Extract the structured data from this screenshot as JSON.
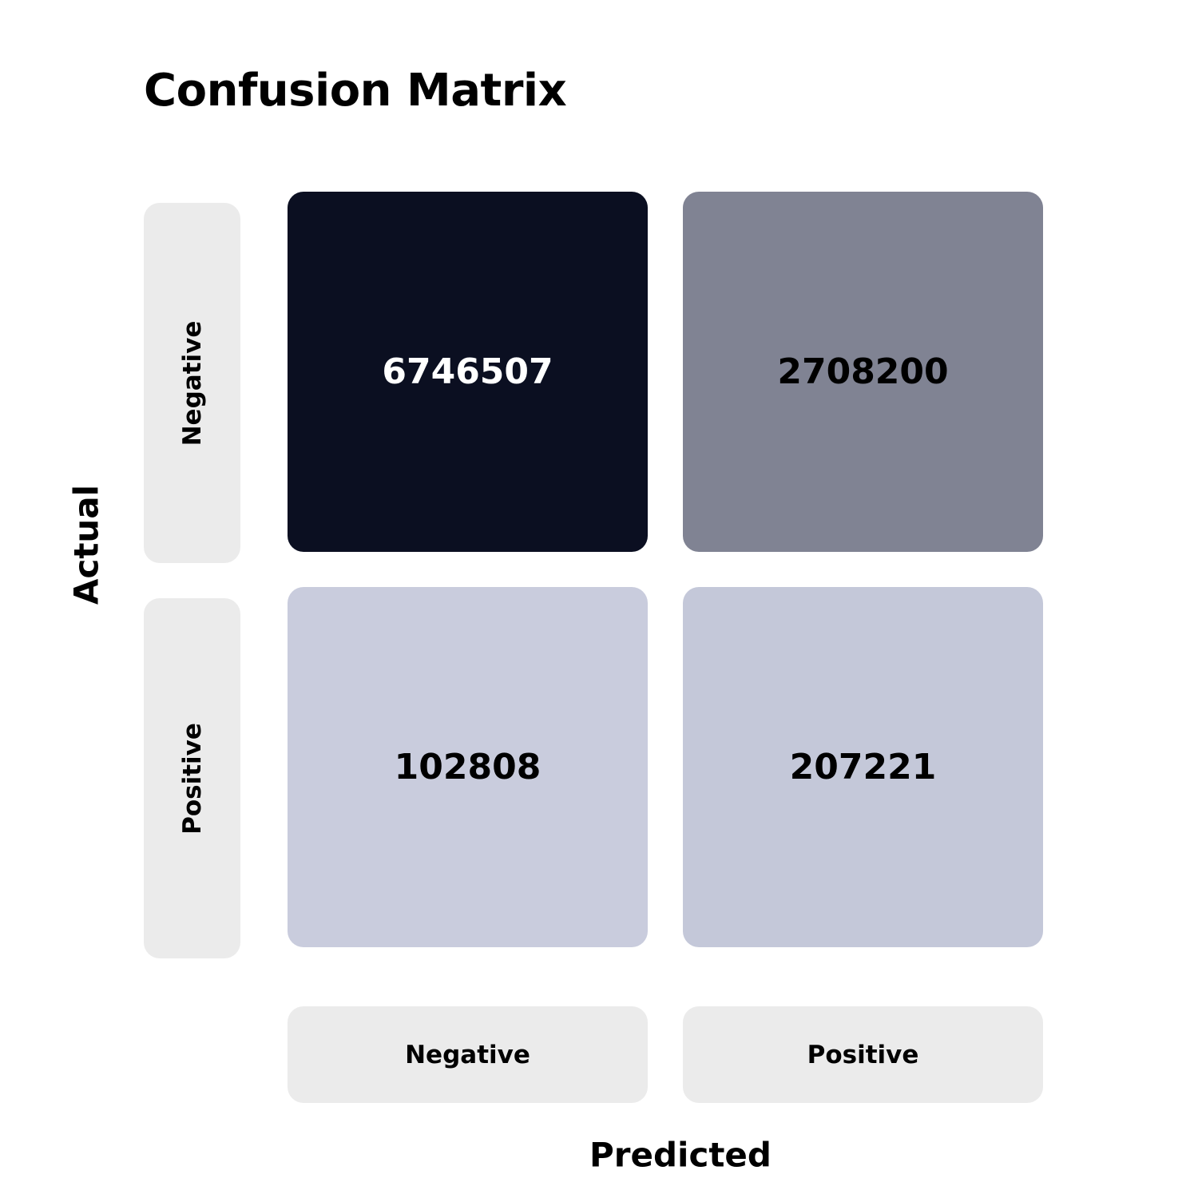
{
  "chart_data": {
    "type": "heatmap",
    "title": "Confusion Matrix",
    "xlabel": "Predicted",
    "ylabel": "Actual",
    "x_categories": [
      "Negative",
      "Positive"
    ],
    "y_categories": [
      "Negative",
      "Positive"
    ],
    "values": [
      [
        6746507,
        2708200
      ],
      [
        102808,
        207221
      ]
    ],
    "colors": {
      "high": "#0b0f21",
      "mid": "#808393",
      "low_a": "#c9ccdd",
      "low_b": "#c4c8d9",
      "label_bg": "#ebebeb",
      "dark_text": "#ffffff",
      "light_text": "#000000"
    }
  }
}
